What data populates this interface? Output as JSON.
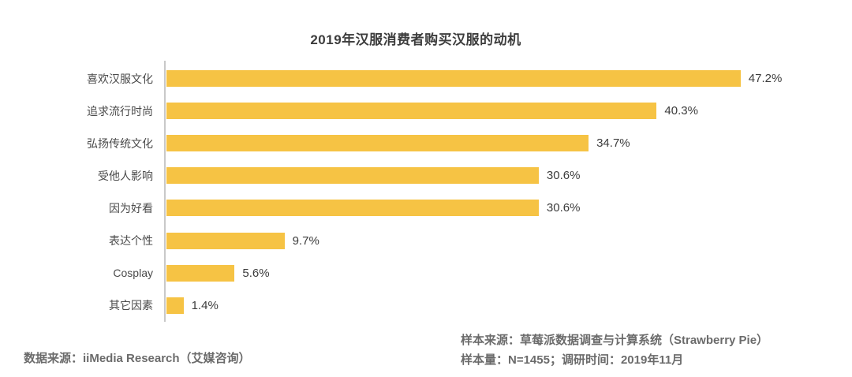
{
  "chart_data": {
    "type": "bar",
    "orientation": "horizontal",
    "title": "2019年汉服消费者购买汉服的动机",
    "categories": [
      "喜欢汉服文化",
      "追求流行时尚",
      "弘扬传统文化",
      "受他人影响",
      "因为好看",
      "表达个性",
      "Cosplay",
      "其它因素"
    ],
    "values": [
      47.2,
      40.3,
      34.7,
      30.6,
      30.6,
      9.7,
      5.6,
      1.4
    ],
    "value_labels": [
      "47.2%",
      "40.3%",
      "34.7%",
      "30.6%",
      "30.6%",
      "9.7%",
      "5.6%",
      "1.4%"
    ],
    "xlabel": "",
    "ylabel": "",
    "xlim": [
      0,
      55
    ],
    "grid": false,
    "legend": "none",
    "bar_color": "#f6c344",
    "axis_color": "#c9c9c9",
    "label_color": "#4a4a4a",
    "value_color": "#3c3c3c"
  },
  "footer": {
    "data_source": "数据来源：iiMedia Research（艾媒咨询）",
    "sample_source": "样本来源：草莓派数据调查与计算系统（Strawberry Pie）",
    "sample_info": "样本量：N=1455；调研时间：2019年11月"
  }
}
